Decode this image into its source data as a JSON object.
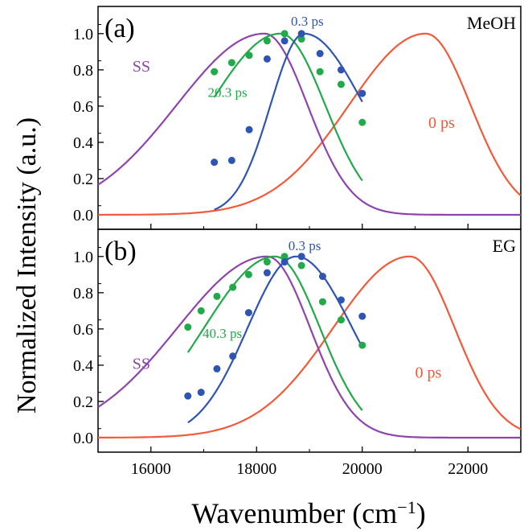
{
  "chart_data": {
    "type": "line",
    "ylabel": "Normalized Intensity (a.u.)",
    "xlabel_main": "Wavenumber (cm",
    "xlabel_sup": "−1",
    "xlabel_close": ")",
    "xlim": [
      15000,
      23000
    ],
    "x_ticks": [
      16000,
      18000,
      20000,
      22000
    ],
    "y_ticks": [
      "0.0",
      "0.2",
      "0.4",
      "0.6",
      "0.8",
      "1.0"
    ],
    "ylim": [
      -0.08,
      1.15
    ],
    "colors": {
      "ss": "#8e44ad",
      "zero": "#f15a3a",
      "early": "#2f55b3",
      "late": "#22a94a"
    },
    "panels": [
      {
        "panel_label": "(a)",
        "solvent": "MeOH",
        "curve_labels": {
          "ss": "SS",
          "zero": "0 ps",
          "early": "0.3 ps",
          "late": "20.3 ps"
        },
        "ss_gauss": {
          "peak": 18150,
          "width_low": 2350,
          "width_high": 1150
        },
        "zero_gauss": {
          "peak": 21200,
          "width_low": 2050,
          "width_high": 1200
        },
        "early_fit": {
          "peak": 18900,
          "width_low": 900,
          "width_high": 1600,
          "x_range": [
            17200,
            20000
          ]
        },
        "late_fit": {
          "peak": 18450,
          "width_low": 1900,
          "width_high": 1200,
          "x_range": [
            17200,
            20000
          ]
        },
        "early_points": [
          [
            17200,
            0.29
          ],
          [
            17530,
            0.3
          ],
          [
            17860,
            0.47
          ],
          [
            18200,
            0.86
          ],
          [
            18530,
            0.96
          ],
          [
            18850,
            1.0
          ],
          [
            19200,
            0.89
          ],
          [
            19600,
            0.8
          ],
          [
            20000,
            0.67
          ]
        ],
        "late_points": [
          [
            17200,
            0.79
          ],
          [
            17530,
            0.84
          ],
          [
            17860,
            0.88
          ],
          [
            18200,
            0.96
          ],
          [
            18530,
            1.0
          ],
          [
            18850,
            0.97
          ],
          [
            19200,
            0.79
          ],
          [
            19600,
            0.72
          ],
          [
            20000,
            0.51
          ]
        ]
      },
      {
        "panel_label": "(b)",
        "solvent": "EG",
        "curve_labels": {
          "ss": "SS",
          "zero": "0 ps",
          "early": "0.3 ps",
          "late": "40.3 ps"
        },
        "ss_gauss": {
          "peak": 18200,
          "width_low": 2400,
          "width_high": 1150
        },
        "zero_gauss": {
          "peak": 20900,
          "width_low": 2050,
          "width_high": 1200
        },
        "early_fit": {
          "peak": 18750,
          "width_low": 1300,
          "width_high": 1500,
          "x_range": [
            16700,
            20000
          ]
        },
        "late_fit": {
          "peak": 18350,
          "width_low": 1900,
          "width_high": 1200,
          "x_range": [
            16700,
            20000
          ]
        },
        "early_points": [
          [
            16700,
            0.23
          ],
          [
            16950,
            0.25
          ],
          [
            17250,
            0.38
          ],
          [
            17550,
            0.45
          ],
          [
            17850,
            0.69
          ],
          [
            18200,
            0.91
          ],
          [
            18530,
            0.97
          ],
          [
            18850,
            1.0
          ],
          [
            19250,
            0.89
          ],
          [
            19600,
            0.76
          ],
          [
            20000,
            0.67
          ]
        ],
        "late_points": [
          [
            16700,
            0.61
          ],
          [
            16950,
            0.7
          ],
          [
            17250,
            0.78
          ],
          [
            17550,
            0.83
          ],
          [
            17850,
            0.9
          ],
          [
            18200,
            0.97
          ],
          [
            18530,
            1.0
          ],
          [
            18850,
            0.95
          ],
          [
            19250,
            0.75
          ],
          [
            19600,
            0.65
          ],
          [
            20000,
            0.51
          ]
        ]
      }
    ]
  }
}
